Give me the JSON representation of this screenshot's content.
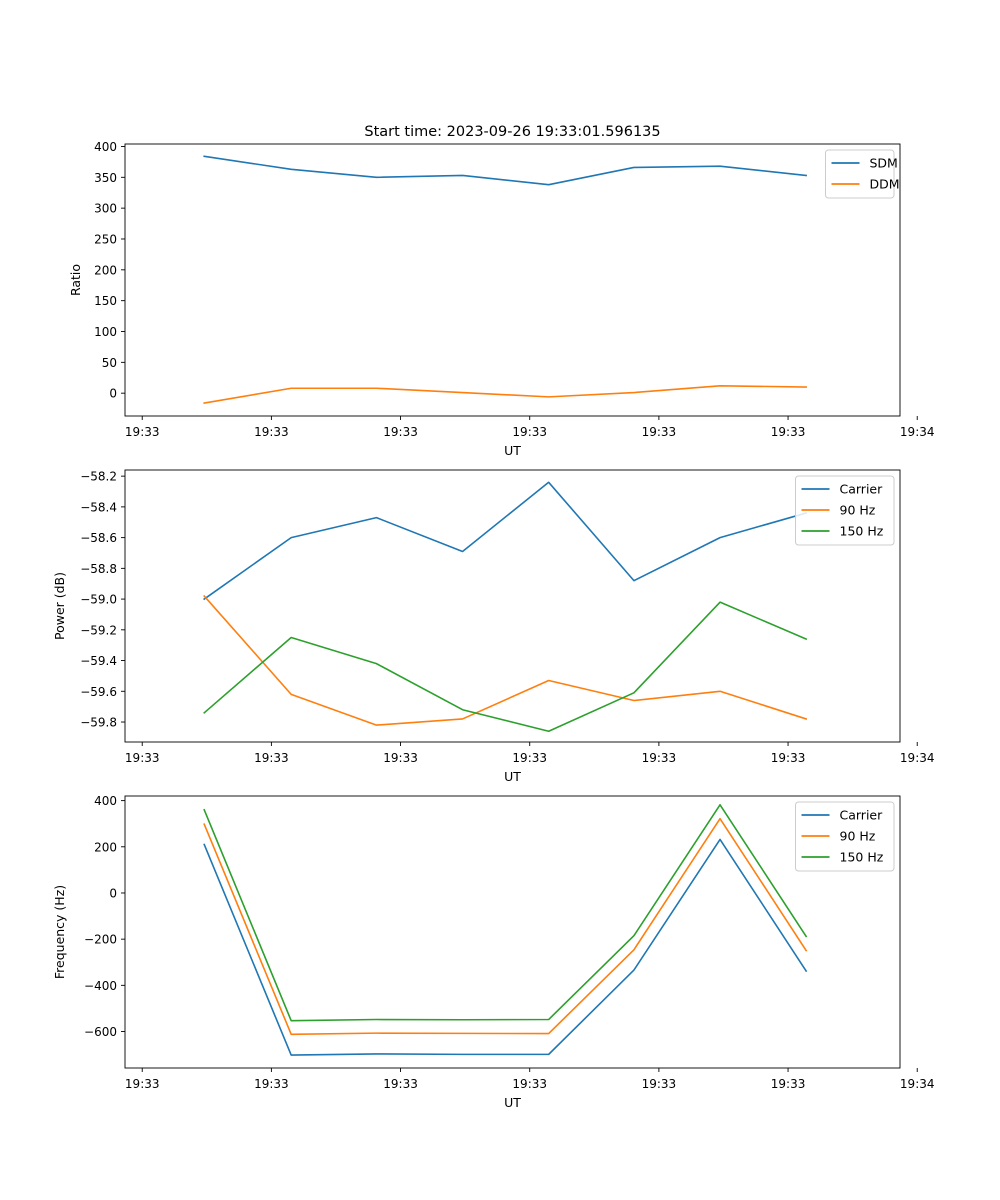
{
  "figure_title": "Start time: 2023-09-26 19:33:01.596135",
  "colors": {
    "blue": "#1f77b4",
    "orange": "#ff7f0e",
    "green": "#2ca02c"
  },
  "chart_data": [
    {
      "type": "line",
      "title": "Start time: 2023-09-26 19:33:01.596135",
      "xlabel": "UT",
      "ylabel": "Ratio",
      "xlim": [
        0,
        9
      ],
      "x": [
        0.92,
        1.93,
        2.92,
        3.92,
        4.92,
        5.91,
        6.91,
        7.91
      ],
      "x_ticks": [
        0.2,
        1.7,
        3.2,
        4.7,
        6.2,
        7.7,
        9.2
      ],
      "x_tick_labels": [
        "19:33",
        "19:33",
        "19:33",
        "19:33",
        "19:33",
        "19:33",
        "19:34"
      ],
      "ylim": [
        -37,
        404
      ],
      "y_ticks": [
        400,
        350,
        300,
        250,
        200,
        150,
        100,
        50,
        0
      ],
      "y_tick_labels": [
        "400",
        "350",
        "300",
        "250",
        "200",
        "150",
        "100",
        "50",
        "0"
      ],
      "legend_position": "top-right",
      "series": [
        {
          "name": "SDM",
          "color": "#1f77b4",
          "values": [
            384,
            363,
            350,
            353,
            338,
            366,
            368,
            353
          ]
        },
        {
          "name": "DDM",
          "color": "#ff7f0e",
          "values": [
            -16,
            8,
            8,
            1,
            -6,
            1,
            12,
            10
          ]
        }
      ]
    },
    {
      "type": "line",
      "title": "",
      "xlabel": "UT",
      "ylabel": "Power (dB)",
      "xlim": [
        0,
        9
      ],
      "x": [
        0.92,
        1.93,
        2.92,
        3.92,
        4.92,
        5.91,
        6.91,
        7.91
      ],
      "x_ticks": [
        0.2,
        1.7,
        3.2,
        4.7,
        6.2,
        7.7,
        9.2
      ],
      "x_tick_labels": [
        "19:33",
        "19:33",
        "19:33",
        "19:33",
        "19:33",
        "19:33",
        "19:34"
      ],
      "ylim": [
        -59.93,
        -58.16
      ],
      "y_ticks": [
        -58.2,
        -58.4,
        -58.6,
        -58.8,
        -59.0,
        -59.2,
        -59.4,
        -59.6,
        -59.8
      ],
      "y_tick_labels": [
        "−58.2",
        "−58.4",
        "−58.6",
        "−58.8",
        "−59.0",
        "−59.2",
        "−59.4",
        "−59.6",
        "−59.8"
      ],
      "legend_position": "top-right",
      "series": [
        {
          "name": "Carrier",
          "color": "#1f77b4",
          "values": [
            -59.0,
            -58.6,
            -58.47,
            -58.69,
            -58.24,
            -58.88,
            -58.6,
            -58.44
          ]
        },
        {
          "name": "90 Hz",
          "color": "#ff7f0e",
          "values": [
            -58.98,
            -59.62,
            -59.82,
            -59.78,
            -59.53,
            -59.66,
            -59.6,
            -59.78
          ]
        },
        {
          "name": "150 Hz",
          "color": "#2ca02c",
          "values": [
            -59.74,
            -59.25,
            -59.42,
            -59.72,
            -59.86,
            -59.61,
            -59.02,
            -59.26
          ]
        }
      ]
    },
    {
      "type": "line",
      "title": "",
      "xlabel": "UT",
      "ylabel": "Frequency (Hz)",
      "xlim": [
        0,
        9
      ],
      "x": [
        0.92,
        1.93,
        2.92,
        3.92,
        4.92,
        5.91,
        6.91,
        7.91
      ],
      "x_ticks": [
        0.2,
        1.7,
        3.2,
        4.7,
        6.2,
        7.7,
        9.2
      ],
      "x_tick_labels": [
        "19:33",
        "19:33",
        "19:33",
        "19:33",
        "19:33",
        "19:33",
        "19:34"
      ],
      "ylim": [
        -758,
        420
      ],
      "y_ticks": [
        400,
        200,
        0,
        -200,
        -400,
        -600
      ],
      "y_tick_labels": [
        "400",
        "200",
        "0",
        "−200",
        "−400",
        "−600"
      ],
      "legend_position": "top-right",
      "series": [
        {
          "name": "Carrier",
          "color": "#1f77b4",
          "values": [
            210,
            -702,
            -697,
            -699,
            -699,
            -334,
            232,
            -338
          ]
        },
        {
          "name": "90 Hz",
          "color": "#ff7f0e",
          "values": [
            298,
            -612,
            -607,
            -608,
            -609,
            -246,
            322,
            -249
          ]
        },
        {
          "name": "150 Hz",
          "color": "#2ca02c",
          "values": [
            360,
            -553,
            -548,
            -549,
            -548,
            -185,
            382,
            -188
          ]
        }
      ]
    }
  ]
}
